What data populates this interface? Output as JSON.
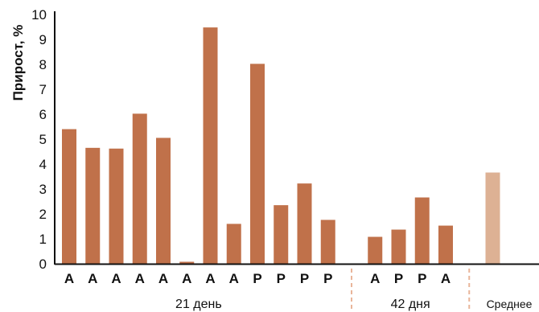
{
  "chart_data": {
    "type": "bar",
    "ylabel": "Прирост, %",
    "ylim": [
      0,
      10
    ],
    "yticks": [
      "0",
      "1",
      "2",
      "3",
      "4",
      "5",
      "6",
      "7",
      "8",
      "9",
      "10"
    ],
    "categories": [
      "А",
      "А",
      "А",
      "А",
      "А",
      "А",
      "А",
      "А",
      "Р",
      "Р",
      "Р",
      "Р",
      "",
      "А",
      "Р",
      "Р",
      "А",
      "",
      ""
    ],
    "values": [
      5.4,
      4.65,
      4.62,
      6.02,
      5.05,
      0.08,
      9.48,
      1.6,
      8.02,
      2.35,
      3.22,
      1.76,
      null,
      1.08,
      1.37,
      2.66,
      1.53,
      null,
      3.66
    ],
    "groups": [
      {
        "label": "21 день",
        "from": 0,
        "to": 11
      },
      {
        "label": "42 дня",
        "from": 13,
        "to": 16
      },
      {
        "label": "Среднее",
        "from": 18,
        "to": 18
      }
    ],
    "colors": {
      "bar": "#c0714a",
      "average": "#ddb194",
      "separator": "#e9b59a",
      "axis": "#111111"
    },
    "grid": false
  }
}
